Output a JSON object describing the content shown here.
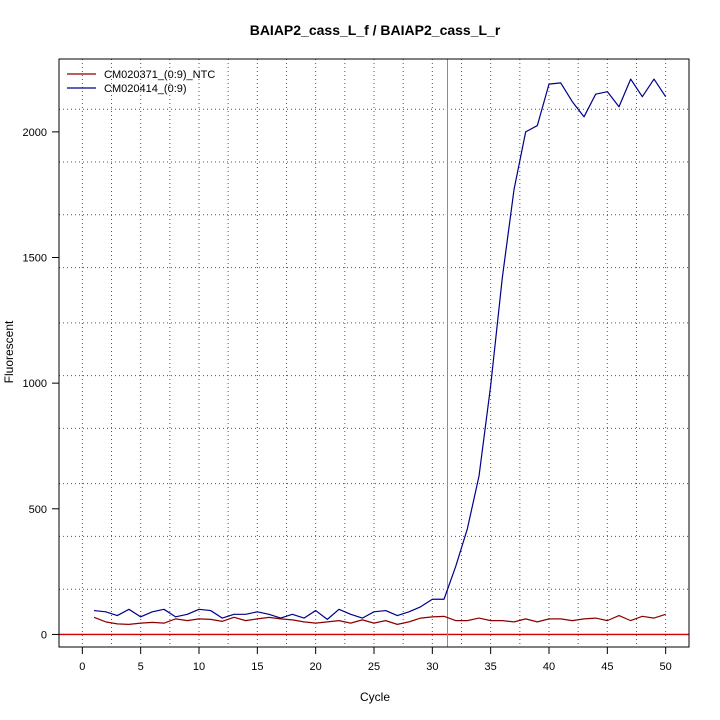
{
  "chart_data": {
    "type": "line",
    "title": "BAIAP2_cass_L_f / BAIAP2_cass_L_r",
    "xlabel": "Cycle",
    "ylabel": "Fluorescent",
    "xlim": [
      -2,
      52
    ],
    "ylim": [
      -50,
      2290
    ],
    "x_ticks": [
      0,
      5,
      10,
      15,
      20,
      25,
      30,
      35,
      40,
      45,
      50
    ],
    "y_ticks": [
      0,
      500,
      1000,
      1500,
      2000
    ],
    "grid": true,
    "grid_x": [
      2.5,
      7.5,
      12.5,
      17.5,
      22.5,
      27.5,
      32.5,
      37.5,
      42.5,
      47.5
    ],
    "grid_y": [
      180,
      390,
      600,
      820,
      1030,
      1240,
      1460,
      1670,
      1880,
      2090
    ],
    "threshold_x": 31.3,
    "baseline_y": 0,
    "legend_position": "top-left",
    "colors": {
      "ntc": "#8b0000",
      "sample": "#00008b",
      "threshold": "#00bfff",
      "baseline": "#cc0000",
      "grid": "#555555"
    },
    "series": [
      {
        "name": "CM020371_(0:9)_NTC",
        "color": "#8b0000",
        "x": [
          1,
          2,
          3,
          4,
          5,
          6,
          7,
          8,
          9,
          10,
          11,
          12,
          13,
          14,
          15,
          16,
          17,
          18,
          19,
          20,
          21,
          22,
          23,
          24,
          25,
          26,
          27,
          28,
          29,
          30,
          31,
          32,
          33,
          34,
          35,
          36,
          37,
          38,
          39,
          40,
          41,
          42,
          43,
          44,
          45,
          46,
          47,
          48,
          49,
          50
        ],
        "values": [
          68,
          50,
          42,
          40,
          45,
          48,
          45,
          62,
          55,
          62,
          60,
          52,
          68,
          55,
          62,
          68,
          62,
          58,
          50,
          45,
          50,
          55,
          45,
          58,
          45,
          55,
          40,
          50,
          65,
          70,
          72,
          55,
          55,
          65,
          55,
          55,
          50,
          62,
          50,
          62,
          62,
          55,
          62,
          65,
          55,
          75,
          55,
          72,
          65,
          80
        ]
      },
      {
        "name": "CM020414_(0:9)",
        "color": "#00008b",
        "x": [
          1,
          2,
          3,
          4,
          5,
          6,
          7,
          8,
          9,
          10,
          11,
          12,
          13,
          14,
          15,
          16,
          17,
          18,
          19,
          20,
          21,
          22,
          23,
          24,
          25,
          26,
          27,
          28,
          29,
          30,
          31,
          32,
          33,
          34,
          35,
          36,
          37,
          38,
          39,
          40,
          41,
          42,
          43,
          44,
          45,
          46,
          47,
          48,
          49,
          50
        ],
        "values": [
          95,
          90,
          75,
          100,
          70,
          90,
          100,
          70,
          80,
          100,
          95,
          65,
          80,
          80,
          90,
          80,
          65,
          80,
          65,
          95,
          60,
          100,
          80,
          65,
          90,
          95,
          75,
          90,
          110,
          140,
          140,
          270,
          420,
          630,
          990,
          1420,
          1770,
          2000,
          2025,
          2190,
          2195,
          2120,
          2060,
          2150,
          2160,
          2100,
          2210,
          2140,
          2210,
          2140
        ]
      }
    ]
  }
}
